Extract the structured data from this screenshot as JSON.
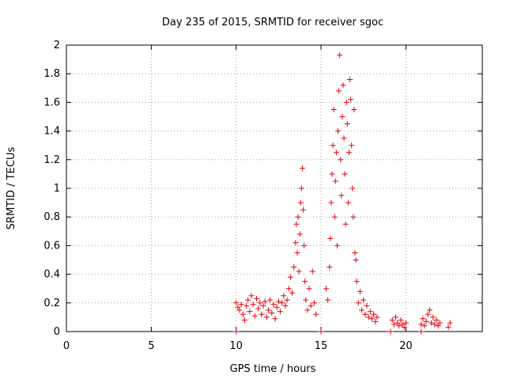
{
  "chart_data": {
    "type": "scatter",
    "title": "Day 235 of 2015, SRMTID for receiver sgoc",
    "xlabel": "GPS time / hours",
    "ylabel": "SRMTID / TECUs",
    "xlim": [
      0,
      24.5
    ],
    "ylim": [
      0,
      2
    ],
    "x_ticks": [
      0,
      5,
      10,
      15,
      20
    ],
    "y_ticks": [
      0,
      0.2,
      0.4,
      0.6,
      0.8,
      1,
      1.2,
      1.4,
      1.6,
      1.8,
      2
    ],
    "x_tick_labels": [
      "0",
      "5",
      "10",
      "15",
      "20"
    ],
    "y_tick_labels": [
      "0",
      "0.2",
      "0.4",
      "0.6",
      "0.8",
      "1",
      "1.2",
      "1.4",
      "1.6",
      "1.8",
      "2"
    ],
    "grid": true,
    "marker": "+",
    "color": "#e8000b",
    "series": [
      {
        "name": "",
        "points": [
          [
            10.0,
            0.0
          ],
          [
            15.0,
            0.0
          ],
          [
            19.1,
            0.0
          ],
          [
            20.9,
            0.0
          ],
          [
            10.0,
            0.2
          ],
          [
            10.1,
            0.17
          ],
          [
            10.2,
            0.15
          ],
          [
            10.3,
            0.19
          ],
          [
            10.4,
            0.12
          ],
          [
            10.5,
            0.08
          ],
          [
            10.6,
            0.18
          ],
          [
            10.7,
            0.22
          ],
          [
            10.8,
            0.14
          ],
          [
            10.9,
            0.25
          ],
          [
            11.0,
            0.19
          ],
          [
            11.1,
            0.11
          ],
          [
            11.2,
            0.23
          ],
          [
            11.3,
            0.16
          ],
          [
            11.4,
            0.2
          ],
          [
            11.5,
            0.12
          ],
          [
            11.6,
            0.18
          ],
          [
            11.7,
            0.21
          ],
          [
            11.8,
            0.1
          ],
          [
            11.9,
            0.15
          ],
          [
            12.0,
            0.22
          ],
          [
            12.1,
            0.13
          ],
          [
            12.2,
            0.19
          ],
          [
            12.3,
            0.09
          ],
          [
            12.4,
            0.17
          ],
          [
            12.5,
            0.21
          ],
          [
            12.6,
            0.14
          ],
          [
            12.7,
            0.2
          ],
          [
            12.8,
            0.25
          ],
          [
            12.9,
            0.18
          ],
          [
            13.0,
            0.22
          ],
          [
            13.1,
            0.3
          ],
          [
            13.2,
            0.38
          ],
          [
            13.3,
            0.27
          ],
          [
            13.4,
            0.45
          ],
          [
            13.5,
            0.62
          ],
          [
            13.55,
            0.75
          ],
          [
            13.6,
            0.55
          ],
          [
            13.65,
            0.8
          ],
          [
            13.7,
            0.42
          ],
          [
            13.75,
            0.68
          ],
          [
            13.8,
            0.9
          ],
          [
            13.85,
            1.0
          ],
          [
            13.9,
            1.14
          ],
          [
            13.95,
            0.85
          ],
          [
            14.0,
            0.6
          ],
          [
            14.05,
            0.35
          ],
          [
            14.1,
            0.22
          ],
          [
            14.2,
            0.15
          ],
          [
            14.3,
            0.3
          ],
          [
            14.4,
            0.18
          ],
          [
            14.5,
            0.42
          ],
          [
            14.6,
            0.2
          ],
          [
            14.7,
            0.12
          ],
          [
            15.3,
            0.3
          ],
          [
            15.4,
            0.22
          ],
          [
            15.5,
            0.45
          ],
          [
            15.55,
            0.65
          ],
          [
            15.6,
            0.9
          ],
          [
            15.65,
            1.1
          ],
          [
            15.7,
            1.3
          ],
          [
            15.75,
            1.55
          ],
          [
            15.8,
            0.8
          ],
          [
            15.85,
            1.05
          ],
          [
            15.9,
            1.25
          ],
          [
            15.95,
            0.6
          ],
          [
            16.0,
            1.4
          ],
          [
            16.05,
            1.68
          ],
          [
            16.1,
            1.93
          ],
          [
            16.15,
            1.2
          ],
          [
            16.2,
            0.95
          ],
          [
            16.25,
            1.5
          ],
          [
            16.3,
            1.72
          ],
          [
            16.35,
            1.35
          ],
          [
            16.4,
            1.1
          ],
          [
            16.45,
            0.75
          ],
          [
            16.5,
            1.6
          ],
          [
            16.55,
            1.45
          ],
          [
            16.6,
            0.9
          ],
          [
            16.65,
            1.25
          ],
          [
            16.7,
            1.76
          ],
          [
            16.75,
            1.62
          ],
          [
            16.8,
            1.3
          ],
          [
            16.85,
            1.0
          ],
          [
            16.9,
            0.8
          ],
          [
            16.95,
            1.55
          ],
          [
            17.0,
            0.55
          ],
          [
            17.05,
            0.5
          ],
          [
            17.1,
            0.35
          ],
          [
            17.2,
            0.2
          ],
          [
            17.3,
            0.28
          ],
          [
            17.4,
            0.15
          ],
          [
            17.5,
            0.22
          ],
          [
            17.6,
            0.12
          ],
          [
            17.7,
            0.18
          ],
          [
            17.8,
            0.1
          ],
          [
            17.9,
            0.14
          ],
          [
            18.0,
            0.09
          ],
          [
            18.1,
            0.12
          ],
          [
            18.2,
            0.07
          ],
          [
            18.3,
            0.1
          ],
          [
            19.2,
            0.08
          ],
          [
            19.3,
            0.05
          ],
          [
            19.4,
            0.1
          ],
          [
            19.5,
            0.06
          ],
          [
            19.6,
            0.04
          ],
          [
            19.7,
            0.08
          ],
          [
            19.8,
            0.05
          ],
          [
            19.9,
            0.03
          ],
          [
            20.0,
            0.06
          ],
          [
            20.9,
            0.05
          ],
          [
            21.0,
            0.09
          ],
          [
            21.1,
            0.04
          ],
          [
            21.2,
            0.07
          ],
          [
            21.3,
            0.12
          ],
          [
            21.4,
            0.15
          ],
          [
            21.5,
            0.06
          ],
          [
            21.6,
            0.1
          ],
          [
            21.7,
            0.05
          ],
          [
            21.8,
            0.08
          ],
          [
            21.9,
            0.04
          ],
          [
            22.0,
            0.06
          ],
          [
            22.5,
            0.03
          ],
          [
            22.6,
            0.06
          ]
        ]
      }
    ]
  }
}
